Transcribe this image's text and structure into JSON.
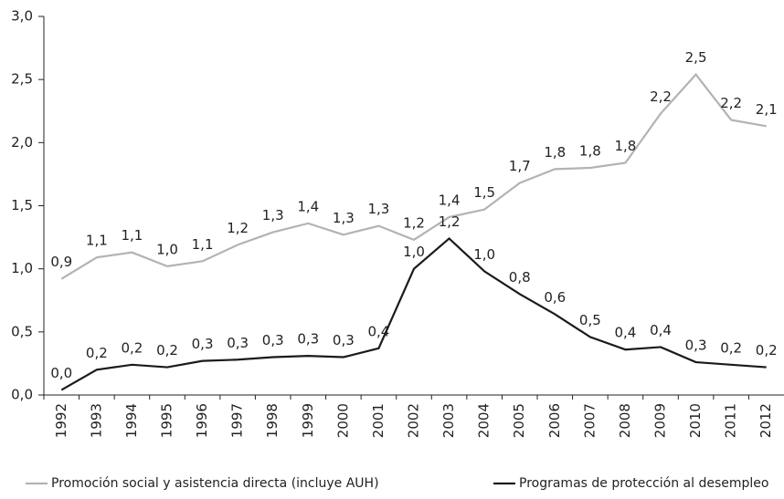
{
  "chart_data": {
    "type": "line",
    "categories": [
      "1992",
      "1993",
      "1994",
      "1995",
      "1996",
      "1997",
      "1998",
      "1999",
      "2000",
      "2001",
      "2002",
      "2003",
      "2004",
      "2005",
      "2006",
      "2007",
      "2008",
      "2009",
      "2010",
      "2011",
      "2012"
    ],
    "series": [
      {
        "name": "Promoción social y asistencia directa (incluye AUH)",
        "color": "#b3b3b3",
        "values": [
          0.92,
          1.09,
          1.13,
          1.02,
          1.06,
          1.19,
          1.29,
          1.36,
          1.27,
          1.34,
          1.23,
          1.41,
          1.47,
          1.68,
          1.79,
          1.8,
          1.84,
          2.23,
          2.54,
          2.18,
          2.13
        ],
        "value_labels": [
          "0,9",
          "1,1",
          "1,1",
          "1,0",
          "1,1",
          "1,2",
          "1,3",
          "1,4",
          "1,3",
          "1,3",
          "1,2",
          "1,4",
          "1,5",
          "1,7",
          "1,8",
          "1,8",
          "1,8",
          "2,2",
          "2,5",
          "2,2",
          "2,1"
        ]
      },
      {
        "name": "Programas de protección al desempleo",
        "color": "#1a1a1a",
        "values": [
          0.04,
          0.2,
          0.24,
          0.22,
          0.27,
          0.28,
          0.3,
          0.31,
          0.3,
          0.37,
          1.0,
          1.24,
          0.98,
          0.8,
          0.64,
          0.46,
          0.36,
          0.38,
          0.26,
          0.24,
          0.22
        ],
        "value_labels": [
          "0,0",
          "0,2",
          "0,2",
          "0,2",
          "0,3",
          "0,3",
          "0,3",
          "0,3",
          "0,3",
          "0,4",
          "1,0",
          "1,2",
          "1,0",
          "0,8",
          "0,6",
          "0,5",
          "0,4",
          "0,4",
          "0,3",
          "0,2",
          "0,2"
        ]
      }
    ],
    "ylim": [
      0,
      3
    ],
    "yticks": [
      {
        "value": 0,
        "label": "0,0"
      },
      {
        "value": 0.5,
        "label": "0,5"
      },
      {
        "value": 1,
        "label": "1,0"
      },
      {
        "value": 1.5,
        "label": "1,5"
      },
      {
        "value": 2,
        "label": "2,0"
      },
      {
        "value": 2.5,
        "label": "2,5"
      },
      {
        "value": 3,
        "label": "3,0"
      }
    ],
    "grid": false,
    "legend": "bottom"
  }
}
